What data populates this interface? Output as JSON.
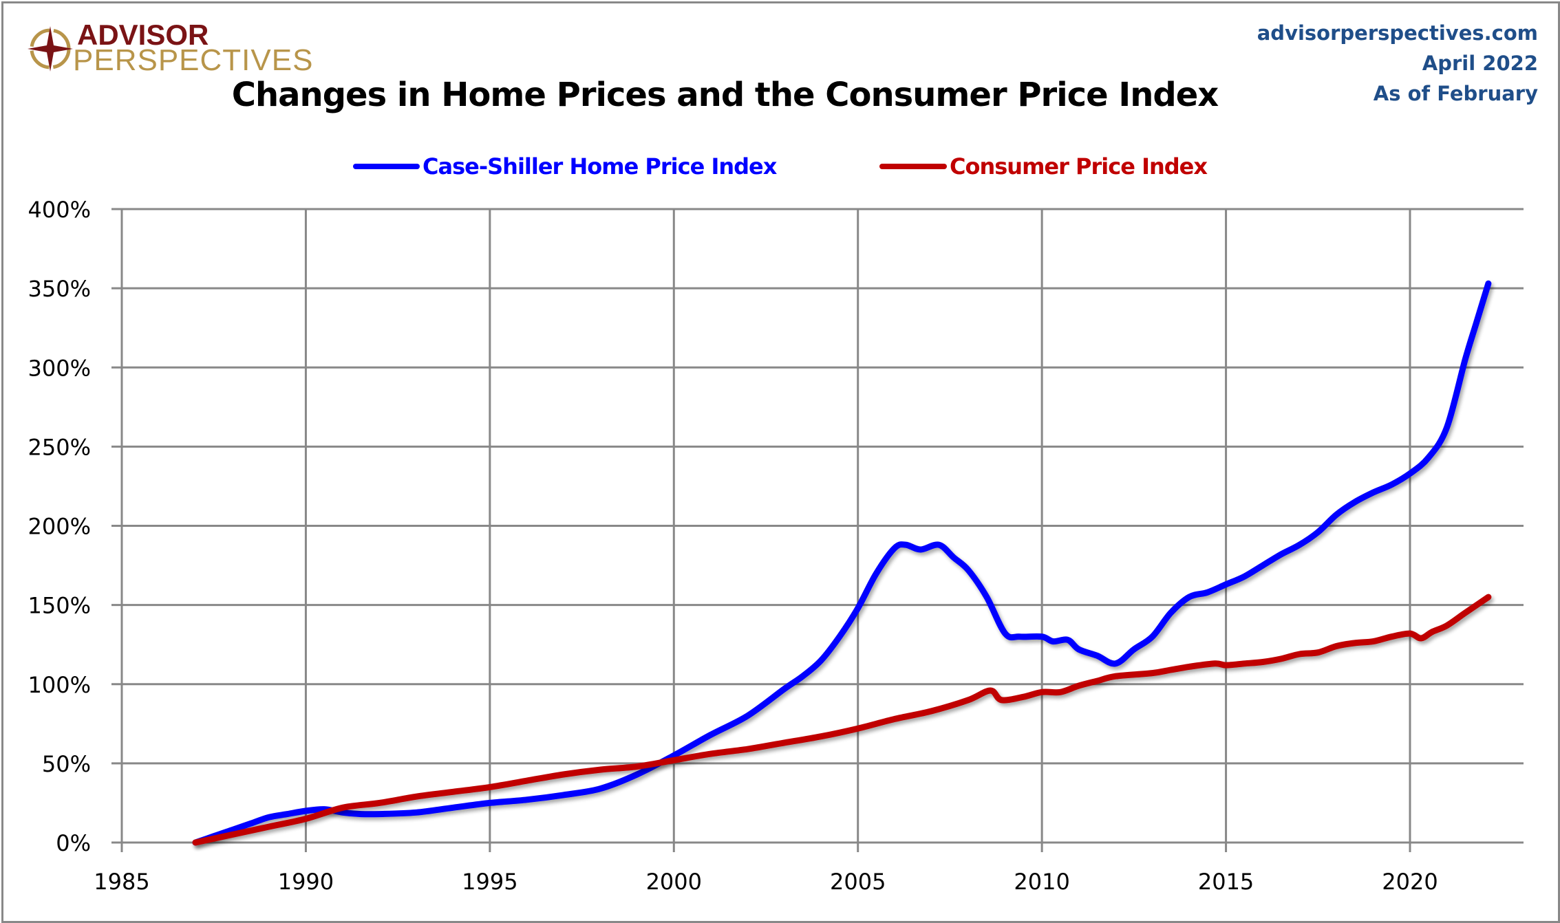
{
  "header": {
    "logo_line1": "ADVISOR",
    "logo_line2": "PERSPECTIVES",
    "site": "advisorperspectives.com",
    "date": "April 2022",
    "as_of": "As of February"
  },
  "colors": {
    "case_shiller": "#0000ff",
    "cpi": "#c00000",
    "grid": "#888888",
    "site_text": "#1f4e89",
    "logo_red": "#7a1315",
    "logo_gold": "#b8954a"
  },
  "chart_data": {
    "type": "line",
    "title": "Changes in Home Prices and the Consumer Price Index",
    "xlabel": "",
    "ylabel": "",
    "xlim": [
      1985,
      2023.08
    ],
    "ylim": [
      0,
      400
    ],
    "x_ticks": [
      1985,
      1990,
      1995,
      2000,
      2005,
      2010,
      2015,
      2020
    ],
    "x_tick_labels": [
      "1985",
      "1990",
      "1995",
      "2000",
      "2005",
      "2010",
      "2015",
      "2020"
    ],
    "y_ticks": [
      0,
      50,
      100,
      150,
      200,
      250,
      300,
      350,
      400
    ],
    "y_tick_labels": [
      "0%",
      "50%",
      "100%",
      "150%",
      "200%",
      "250%",
      "300%",
      "350%",
      "400%"
    ],
    "grid": true,
    "legend_position": "top-center",
    "series": [
      {
        "name": "Case-Shiller Home Price Index",
        "color": "#0000ff",
        "x": [
          1987.0,
          1987.5,
          1988.0,
          1988.5,
          1989.0,
          1989.5,
          1990.0,
          1990.5,
          1991.0,
          1991.5,
          1992.0,
          1993.0,
          1994.0,
          1995.0,
          1996.0,
          1997.0,
          1998.0,
          1999.0,
          2000.0,
          2001.0,
          2002.0,
          2003.0,
          2003.5,
          2004.0,
          2004.5,
          2005.0,
          2005.5,
          2006.0,
          2006.3,
          2006.7,
          2007.2,
          2007.6,
          2008.0,
          2008.5,
          2009.0,
          2009.4,
          2010.0,
          2010.3,
          2010.7,
          2011.0,
          2011.5,
          2012.0,
          2012.5,
          2013.0,
          2013.5,
          2014.0,
          2014.5,
          2015.0,
          2015.5,
          2016.0,
          2016.5,
          2017.0,
          2017.5,
          2018.0,
          2018.5,
          2019.0,
          2019.5,
          2020.0,
          2020.5,
          2021.0,
          2021.5,
          2021.8,
          2022.13
        ],
        "y": [
          0,
          4,
          8,
          12,
          16,
          18,
          20,
          21,
          19,
          18,
          18,
          19,
          22,
          25,
          27,
          30,
          34,
          43,
          55,
          68,
          80,
          97,
          105,
          115,
          130,
          148,
          170,
          186,
          188,
          185,
          188,
          180,
          172,
          155,
          132,
          130,
          130,
          127,
          128,
          122,
          118,
          113,
          122,
          130,
          145,
          155,
          158,
          163,
          168,
          175,
          182,
          188,
          196,
          207,
          215,
          221,
          226,
          233,
          243,
          262,
          305,
          328,
          353
        ]
      },
      {
        "name": "Consumer Price Index",
        "color": "#c00000",
        "x": [
          1987.0,
          1988.0,
          1989.0,
          1990.0,
          1991.0,
          1992.0,
          1993.0,
          1994.0,
          1995.0,
          1996.0,
          1997.0,
          1998.0,
          1999.0,
          2000.0,
          2001.0,
          2002.0,
          2003.0,
          2004.0,
          2005.0,
          2006.0,
          2007.0,
          2008.0,
          2008.6,
          2008.9,
          2009.5,
          2010.0,
          2010.5,
          2011.0,
          2011.5,
          2012.0,
          2013.0,
          2013.5,
          2014.0,
          2014.7,
          2015.0,
          2015.5,
          2016.0,
          2016.5,
          2017.0,
          2017.5,
          2018.0,
          2018.5,
          2019.0,
          2019.5,
          2020.0,
          2020.3,
          2020.6,
          2021.0,
          2021.5,
          2022.13
        ],
        "y": [
          0,
          5,
          10,
          15,
          22,
          25,
          29,
          32,
          35,
          39,
          43,
          46,
          48,
          52,
          56,
          59,
          63,
          67,
          72,
          78,
          83,
          90,
          96,
          90,
          92,
          95,
          95,
          99,
          102,
          105,
          107,
          109,
          111,
          113,
          112,
          113,
          114,
          116,
          119,
          120,
          124,
          126,
          127,
          130,
          132,
          129,
          133,
          137,
          145,
          155
        ]
      }
    ]
  }
}
